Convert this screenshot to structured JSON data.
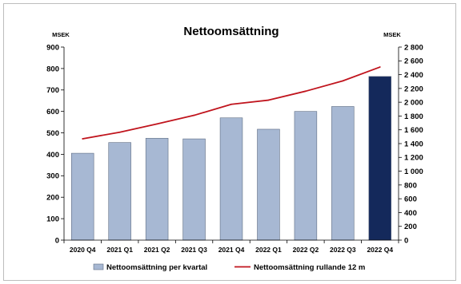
{
  "chart_data": {
    "type": "bar",
    "title": "Nettoomsättning",
    "left_unit": "MSEK",
    "right_unit": "MSEK",
    "categories": [
      "2020 Q4",
      "2021 Q1",
      "2021 Q2",
      "2021 Q3",
      "2021 Q4",
      "2022 Q1",
      "2022 Q2",
      "2022 Q3",
      "2022 Q4"
    ],
    "series": [
      {
        "name": "Nettoomsättning per kvartal",
        "type": "bar",
        "axis": "left",
        "values": [
          405,
          455,
          475,
          472,
          570,
          517,
          600,
          623,
          763
        ],
        "color": "#a7b8d3",
        "highlight_color": "#14295b"
      },
      {
        "name": "Nettoomsättning rullande 12 m",
        "type": "line",
        "axis": "right",
        "values": [
          1470,
          1565,
          1685,
          1810,
          1970,
          2030,
          2160,
          2310,
          2510
        ],
        "color": "#c0141d"
      }
    ],
    "left_axis": {
      "range": [
        0,
        900
      ],
      "ticks": [
        "0",
        "100",
        "200",
        "300",
        "400",
        "500",
        "600",
        "700",
        "800",
        "900"
      ]
    },
    "right_axis": {
      "range": [
        0,
        2800
      ],
      "ticks": [
        "0",
        "200",
        "400",
        "600",
        "800",
        "1 000",
        "1 200",
        "1 400",
        "1 600",
        "1 800",
        "2 000",
        "2 200",
        "2 400",
        "2 600",
        "2 800"
      ]
    },
    "grid": false,
    "legend_position": "bottom"
  }
}
